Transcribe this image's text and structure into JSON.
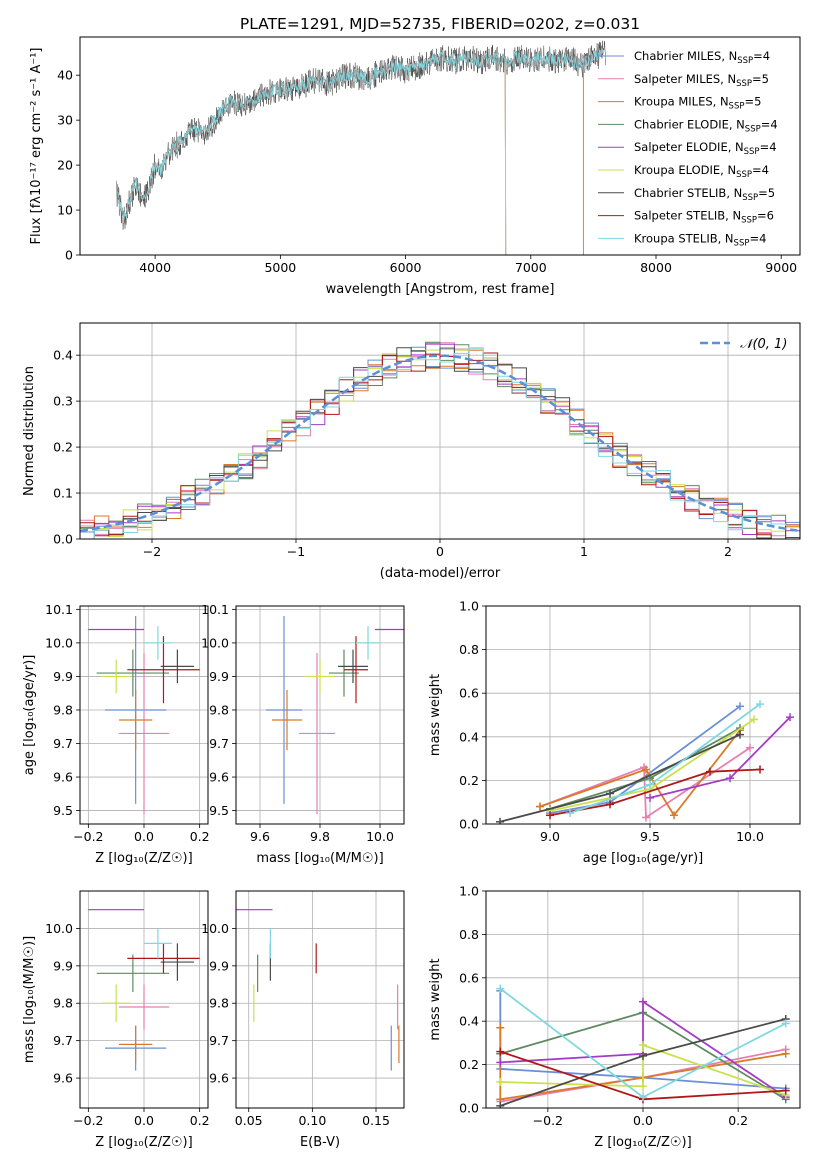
{
  "figure_title": "PLATE=1291, MJD=52735, FIBERID=0202, z=0.031",
  "colors": {
    "grid": "#b0b0b0",
    "axes": "#000000",
    "normal_curve": "#5b8fd6"
  },
  "chart_data": [
    {
      "id": "spectrum",
      "type": "line",
      "title": "PLATE=1291, MJD=52735, FIBERID=0202, z=0.031",
      "xlabel": "wavelength [Angstrom, rest frame]",
      "ylabel": "Flux [fλ10⁻¹⁷ erg cm⁻² s⁻¹ A⁻¹]",
      "xlim": [
        3400,
        9150
      ],
      "ylim": [
        0,
        48.5
      ],
      "xticks": [
        4000,
        5000,
        6000,
        7000,
        8000,
        9000
      ],
      "yticks": [
        0,
        10,
        20,
        30,
        40
      ],
      "grid": false,
      "legend_position": "upper-right",
      "observed_spectrum": {
        "color": "#444444",
        "x": [
          3690,
          3750,
          3800,
          3850,
          3900,
          3950,
          4000,
          4050,
          4100,
          4150,
          4200,
          4300,
          4400,
          4500,
          4600,
          4700,
          4800,
          4900,
          5000,
          5100,
          5200,
          5300,
          5400,
          5500,
          5600,
          5700,
          5800,
          5900,
          6000,
          6100,
          6200,
          6300,
          6400,
          6500,
          6600,
          6700,
          6800,
          6900,
          7000,
          7100,
          7200,
          7300,
          7400,
          7500,
          7600
        ],
        "y": [
          14,
          8,
          12,
          16,
          12,
          15,
          20,
          19,
          22,
          24,
          25,
          28,
          27,
          31,
          34,
          33,
          35,
          36,
          37,
          37,
          38,
          39,
          38,
          40,
          40,
          39,
          41,
          42,
          41,
          42,
          43,
          44,
          43,
          44,
          43,
          44,
          43,
          44,
          43,
          44,
          43,
          44,
          42,
          44,
          45
        ]
      },
      "series": [
        {
          "name": "Chabrier MILES, N_SSP=4",
          "label_main": "Chabrier MILES, N",
          "label_sub": "SSP",
          "label_tail": "=4",
          "color": "#6a8fd6",
          "x_range": [
            3700,
            7580
          ],
          "drop_at": null
        },
        {
          "name": "Salpeter MILES, N_SSP=5",
          "label_main": "Salpeter MILES, N",
          "label_sub": "SSP",
          "label_tail": "=5",
          "color": "#e87fb0",
          "x_range": [
            3700,
            7580
          ],
          "drop_at": null
        },
        {
          "name": "Kroupa MILES, N_SSP=5",
          "label_main": "Kroupa MILES, N",
          "label_sub": "SSP",
          "label_tail": "=5",
          "color": "#d87a2a",
          "x_range": [
            3700,
            7420
          ],
          "drop_at": 7420
        },
        {
          "name": "Chabrier ELODIE, N_SSP=4",
          "label_main": "Chabrier ELODIE, N",
          "label_sub": "SSP",
          "label_tail": "=4",
          "color": "#5e8a62",
          "x_range": [
            3700,
            6800
          ],
          "drop_at": 6800
        },
        {
          "name": "Salpeter ELODIE, N_SSP=4",
          "label_main": "Salpeter ELODIE, N",
          "label_sub": "SSP",
          "label_tail": "=4",
          "color": "#a63cc4",
          "x_range": [
            3700,
            6800
          ],
          "drop_at": 6800
        },
        {
          "name": "Kroupa ELODIE, N_SSP=4",
          "label_main": "Kroupa ELODIE, N",
          "label_sub": "SSP",
          "label_tail": "=4",
          "color": "#cce04a",
          "x_range": [
            3700,
            6800
          ],
          "drop_at": 6800
        },
        {
          "name": "Chabrier STELIB, N_SSP=5",
          "label_main": "Chabrier STELIB, N",
          "label_sub": "SSP",
          "label_tail": "=5",
          "color": "#4a4a4a",
          "x_range": [
            3700,
            7580
          ],
          "drop_at": null
        },
        {
          "name": "Salpeter STELIB, N_SSP=6",
          "label_main": "Salpeter STELIB, N",
          "label_sub": "SSP",
          "label_tail": "=6",
          "color": "#b01818",
          "x_range": [
            3700,
            7580
          ],
          "drop_at": null
        },
        {
          "name": "Kroupa STELIB, N_SSP=4",
          "label_main": "Kroupa STELIB, N",
          "label_sub": "SSP",
          "label_tail": "=4",
          "color": "#7fd8e0",
          "x_range": [
            3700,
            7580
          ],
          "drop_at": null
        }
      ]
    },
    {
      "id": "residuals",
      "type": "line",
      "xlabel": "(data-model)/error",
      "ylabel": "Normed distribution",
      "xlim": [
        -2.5,
        2.5
      ],
      "ylim": [
        0,
        0.47
      ],
      "xticks": [
        -2,
        -1,
        0,
        1,
        2
      ],
      "yticks": [
        0.0,
        0.1,
        0.2,
        0.3,
        0.4
      ],
      "grid": true,
      "legend_position": "upper-right",
      "legend_label": "𝒩(0, 1)",
      "normal_curve": {
        "mean": 0,
        "sigma": 1
      },
      "histogram": {
        "bin_width": 0.1,
        "x_start": -2.5,
        "x_end": 2.5,
        "series_colors": [
          "#6a8fd6",
          "#e87fb0",
          "#d87a2a",
          "#5e8a62",
          "#a63cc4",
          "#cce04a",
          "#4a4a4a",
          "#b01818",
          "#7fd8e0"
        ]
      }
    },
    {
      "id": "age_vs_Z",
      "type": "scatter",
      "xlabel": "Z [log₁₀(Z/Z☉)]",
      "ylabel": "age  [log₁₀(age/yr)]",
      "xlim": [
        -0.23,
        0.23
      ],
      "ylim": [
        9.46,
        10.11
      ],
      "xticks": [
        -0.2,
        0.0,
        0.2
      ],
      "yticks": [
        9.5,
        9.6,
        9.7,
        9.8,
        9.9,
        10.0,
        10.1
      ],
      "grid": true,
      "points": [
        {
          "color": "#6a8fd6",
          "x": -0.03,
          "xerr": 0.11,
          "y": 9.8,
          "yerr": 0.28
        },
        {
          "color": "#e87fb0",
          "x": 0.0,
          "xerr": 0.09,
          "y": 9.73,
          "yerr": 0.24
        },
        {
          "color": "#d87a2a",
          "x": -0.03,
          "xerr": 0.06,
          "y": 9.77,
          "yerr": 0.09
        },
        {
          "color": "#5e8a62",
          "x": -0.04,
          "xerr": 0.13,
          "y": 9.91,
          "yerr": 0.07
        },
        {
          "color": "#a63cc4",
          "x": -0.1,
          "xerr": 0.1,
          "y": 10.04,
          "yerr": 0.0
        },
        {
          "color": "#cce04a",
          "x": -0.1,
          "xerr": 0.05,
          "y": 9.9,
          "yerr": 0.05
        },
        {
          "color": "#4a4a4a",
          "x": 0.12,
          "xerr": 0.06,
          "y": 9.93,
          "yerr": 0.05
        },
        {
          "color": "#b01818",
          "x": 0.07,
          "xerr": 0.13,
          "y": 9.92,
          "yerr": 0.1
        },
        {
          "color": "#7fd8e0",
          "x": 0.05,
          "xerr": 0.05,
          "y": 10.0,
          "yerr": 0.05
        }
      ]
    },
    {
      "id": "age_vs_mass",
      "type": "scatter",
      "xlabel": "mass [log₁₀(M/M☉)]",
      "ylabel": "",
      "xlim": [
        9.52,
        10.08
      ],
      "ylim": [
        9.46,
        10.11
      ],
      "xticks": [
        9.6,
        9.8,
        10.0
      ],
      "yticks": [
        9.5,
        9.6,
        9.7,
        9.8,
        9.9,
        10.0,
        10.1
      ],
      "grid": true,
      "points": [
        {
          "color": "#6a8fd6",
          "x": 9.68,
          "xerr": 0.06,
          "y": 9.8,
          "yerr": 0.28
        },
        {
          "color": "#e87fb0",
          "x": 9.79,
          "xerr": 0.06,
          "y": 9.73,
          "yerr": 0.24
        },
        {
          "color": "#d87a2a",
          "x": 9.69,
          "xerr": 0.05,
          "y": 9.77,
          "yerr": 0.09
        },
        {
          "color": "#5e8a62",
          "x": 9.88,
          "xerr": 0.05,
          "y": 9.91,
          "yerr": 0.07
        },
        {
          "color": "#a63cc4",
          "x": 10.05,
          "xerr": 0.0,
          "y": 10.04,
          "yerr": 0.0
        },
        {
          "color": "#cce04a",
          "x": 9.8,
          "xerr": 0.05,
          "y": 9.9,
          "yerr": 0.05
        },
        {
          "color": "#4a4a4a",
          "x": 9.91,
          "xerr": 0.05,
          "y": 9.93,
          "yerr": 0.05
        },
        {
          "color": "#b01818",
          "x": 9.92,
          "xerr": 0.04,
          "y": 9.92,
          "yerr": 0.1
        },
        {
          "color": "#7fd8e0",
          "x": 9.96,
          "xerr": 0.04,
          "y": 10.0,
          "yerr": 0.05
        }
      ]
    },
    {
      "id": "mass_weight_vs_age",
      "type": "line",
      "xlabel": "age  [log₁₀(age/yr)]",
      "ylabel": "mass weight",
      "xlim": [
        8.68,
        10.25
      ],
      "ylim": [
        0,
        1.0
      ],
      "xticks": [
        9.0,
        9.5,
        10.0
      ],
      "yticks": [
        0.0,
        0.2,
        0.4,
        0.6,
        0.8,
        1.0
      ],
      "grid": true,
      "series": [
        {
          "color": "#6a8fd6",
          "x": [
            9.0,
            9.3,
            9.95
          ],
          "y": [
            0.05,
            0.1,
            0.54
          ]
        },
        {
          "color": "#e87fb0",
          "x": [
            8.95,
            9.47,
            9.48,
            10.0
          ],
          "y": [
            0.08,
            0.26,
            0.03,
            0.35
          ]
        },
        {
          "color": "#d87a2a",
          "x": [
            8.95,
            9.48,
            9.62,
            9.95
          ],
          "y": [
            0.08,
            0.25,
            0.04,
            0.43
          ]
        },
        {
          "color": "#5e8a62",
          "x": [
            9.0,
            9.5,
            9.95
          ],
          "y": [
            0.07,
            0.21,
            0.44
          ]
        },
        {
          "color": "#a63cc4",
          "x": [
            9.5,
            9.9,
            10.2
          ],
          "y": [
            0.12,
            0.21,
            0.49
          ]
        },
        {
          "color": "#cce04a",
          "x": [
            9.0,
            9.5,
            10.02
          ],
          "y": [
            0.06,
            0.16,
            0.48
          ]
        },
        {
          "color": "#4a4a4a",
          "x": [
            8.75,
            9.3,
            9.95
          ],
          "y": [
            0.01,
            0.14,
            0.41
          ]
        },
        {
          "color": "#b01818",
          "x": [
            9.0,
            9.3,
            9.8,
            10.05
          ],
          "y": [
            0.04,
            0.09,
            0.24,
            0.25
          ]
        },
        {
          "color": "#7fd8e0",
          "x": [
            9.1,
            9.5,
            10.05
          ],
          "y": [
            0.05,
            0.18,
            0.55
          ]
        }
      ]
    },
    {
      "id": "mass_vs_Z",
      "type": "scatter",
      "xlabel": "Z [log₁₀(Z/Z☉)]",
      "ylabel": "mass [log₁₀(M/M☉)]",
      "xlim": [
        -0.23,
        0.23
      ],
      "ylim": [
        9.52,
        10.1
      ],
      "xticks": [
        -0.2,
        0.0,
        0.2
      ],
      "yticks": [
        9.6,
        9.7,
        9.8,
        9.9,
        10.0
      ],
      "grid": true,
      "points": [
        {
          "color": "#6a8fd6",
          "x": -0.03,
          "xerr": 0.11,
          "y": 9.68,
          "yerr": 0.06
        },
        {
          "color": "#e87fb0",
          "x": 0.0,
          "xerr": 0.09,
          "y": 9.79,
          "yerr": 0.06
        },
        {
          "color": "#d87a2a",
          "x": -0.03,
          "xerr": 0.06,
          "y": 9.69,
          "yerr": 0.05
        },
        {
          "color": "#5e8a62",
          "x": -0.04,
          "xerr": 0.13,
          "y": 9.88,
          "yerr": 0.05
        },
        {
          "color": "#a63cc4",
          "x": -0.1,
          "xerr": 0.1,
          "y": 10.05,
          "yerr": 0.0
        },
        {
          "color": "#cce04a",
          "x": -0.1,
          "xerr": 0.05,
          "y": 9.8,
          "yerr": 0.05
        },
        {
          "color": "#4a4a4a",
          "x": 0.12,
          "xerr": 0.06,
          "y": 9.91,
          "yerr": 0.05
        },
        {
          "color": "#b01818",
          "x": 0.07,
          "xerr": 0.13,
          "y": 9.92,
          "yerr": 0.04
        },
        {
          "color": "#7fd8e0",
          "x": 0.05,
          "xerr": 0.05,
          "y": 9.96,
          "yerr": 0.04
        }
      ]
    },
    {
      "id": "mass_vs_EBV",
      "type": "scatter",
      "xlabel": "E(B-V)",
      "ylabel": "",
      "xlim": [
        0.04,
        0.172
      ],
      "ylim": [
        9.52,
        10.1
      ],
      "xticks": [
        0.05,
        0.1,
        0.15
      ],
      "yticks": [
        9.6,
        9.7,
        9.8,
        9.9,
        10.0
      ],
      "grid": true,
      "points": [
        {
          "color": "#6a8fd6",
          "x": 0.162,
          "xerr": 0,
          "y": 9.68,
          "yerr": 0.06
        },
        {
          "color": "#e87fb0",
          "x": 0.167,
          "xerr": 0,
          "y": 9.79,
          "yerr": 0.06
        },
        {
          "color": "#d87a2a",
          "x": 0.168,
          "xerr": 0,
          "y": 9.69,
          "yerr": 0.05
        },
        {
          "color": "#5e8a62",
          "x": 0.057,
          "xerr": 0,
          "y": 9.88,
          "yerr": 0.05
        },
        {
          "color": "#a63cc4",
          "x": 0.053,
          "xerr": 0,
          "y": 10.05,
          "yerr": 0.0
        },
        {
          "color": "#cce04a",
          "x": 0.054,
          "xerr": 0,
          "y": 9.8,
          "yerr": 0.05
        },
        {
          "color": "#4a4a4a",
          "x": 0.067,
          "xerr": 0,
          "y": 9.91,
          "yerr": 0.05
        },
        {
          "color": "#b01818",
          "x": 0.103,
          "xerr": 0,
          "y": 9.92,
          "yerr": 0.04
        },
        {
          "color": "#7fd8e0",
          "x": 0.067,
          "xerr": 0,
          "y": 9.96,
          "yerr": 0.04
        }
      ]
    },
    {
      "id": "mass_weight_vs_Z",
      "type": "line",
      "xlabel": "Z [log₁₀(Z/Z☉)]",
      "ylabel": "mass weight",
      "xlim": [
        -0.33,
        0.33
      ],
      "ylim": [
        0,
        1.0
      ],
      "xticks": [
        -0.2,
        0.0,
        0.2
      ],
      "yticks": [
        0.0,
        0.2,
        0.4,
        0.6,
        0.8,
        1.0
      ],
      "grid": true,
      "series": [
        {
          "color": "#6a8fd6",
          "x": [
            -0.3,
            -0.3,
            0.0,
            0.3
          ],
          "y": [
            0.54,
            0.18,
            0.14,
            0.09
          ]
        },
        {
          "color": "#e87fb0",
          "x": [
            -0.3,
            0.0,
            0.3
          ],
          "y": [
            0.03,
            0.14,
            0.27
          ]
        },
        {
          "color": "#d87a2a",
          "x": [
            -0.3,
            -0.3,
            0.0,
            0.3
          ],
          "y": [
            0.37,
            0.04,
            0.14,
            0.25
          ]
        },
        {
          "color": "#5e8a62",
          "x": [
            -0.3,
            0.0,
            0.3
          ],
          "y": [
            0.25,
            0.44,
            0.04
          ]
        },
        {
          "color": "#a63cc4",
          "x": [
            -0.3,
            0.0,
            0.0,
            0.3
          ],
          "y": [
            0.21,
            0.25,
            0.49,
            0.05
          ]
        },
        {
          "color": "#cce04a",
          "x": [
            -0.3,
            0.0,
            0.0,
            0.3
          ],
          "y": [
            0.12,
            0.1,
            0.29,
            0.06
          ]
        },
        {
          "color": "#4a4a4a",
          "x": [
            -0.3,
            0.0,
            0.3
          ],
          "y": [
            0.01,
            0.24,
            0.41
          ]
        },
        {
          "color": "#b01818",
          "x": [
            -0.3,
            0.0,
            0.3
          ],
          "y": [
            0.26,
            0.04,
            0.08
          ]
        },
        {
          "color": "#7fd8e0",
          "x": [
            -0.3,
            0.0,
            0.3
          ],
          "y": [
            0.55,
            0.05,
            0.39
          ]
        }
      ]
    }
  ]
}
